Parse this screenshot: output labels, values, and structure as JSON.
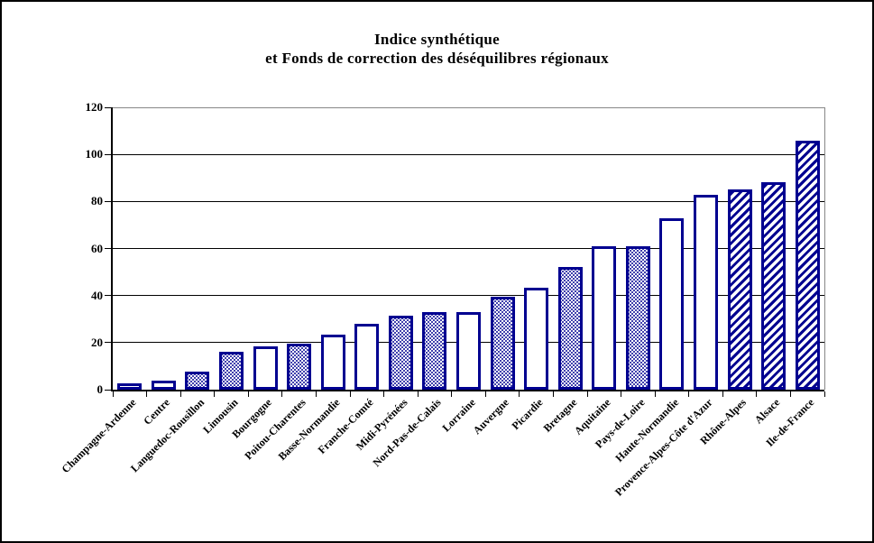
{
  "title": {
    "line1": "Indice synthétique",
    "line2": "et Fonds de correction des déséquilibres régionaux"
  },
  "colors": {
    "bar_border": "#000090",
    "gridline": "#000000",
    "plot_border": "#878787",
    "axis": "#000000",
    "background": "#ffffff",
    "outer_border": "#000000"
  },
  "chart_data": {
    "type": "bar",
    "title": "Indice synthétique et Fonds de correction des déséquilibres régionaux",
    "xlabel": "",
    "ylabel": "",
    "ylim": [
      0,
      120
    ],
    "yticks": [
      0,
      20,
      40,
      60,
      80,
      100,
      120
    ],
    "grid": true,
    "legend": false,
    "categories": [
      "Champagne-Ardenne",
      "Centre",
      "Languedoc-Rousillon",
      "Limousin",
      "Bourgogne",
      "Poitou-Charentes",
      "Basse-Normandie",
      "Franche-Comté",
      "Midi-Pyrénées",
      "Nord-Pas-de-Calais",
      "Lorraine",
      "Auvergne",
      "Picardie",
      "Bretagne",
      "Aquitaine",
      "Pays-de-Loire",
      "Haute-Normandie",
      "Provence-Alpes-Côte d'Azur",
      "Rhône-Alpes",
      "Alsace",
      "Ile-de-France"
    ],
    "values": [
      2.5,
      4,
      7.5,
      16,
      18.5,
      19.5,
      23.5,
      28,
      31.5,
      33,
      33,
      39.5,
      43.5,
      52,
      61,
      61,
      73,
      83,
      85,
      88,
      106
    ],
    "bar_fill_patterns": [
      "plain",
      "plain",
      "dots",
      "dots",
      "plain",
      "dots",
      "plain",
      "plain",
      "dots",
      "dots",
      "plain",
      "dots",
      "plain",
      "dots",
      "plain",
      "dots",
      "plain",
      "plain",
      "hatch",
      "hatch",
      "hatch"
    ]
  }
}
